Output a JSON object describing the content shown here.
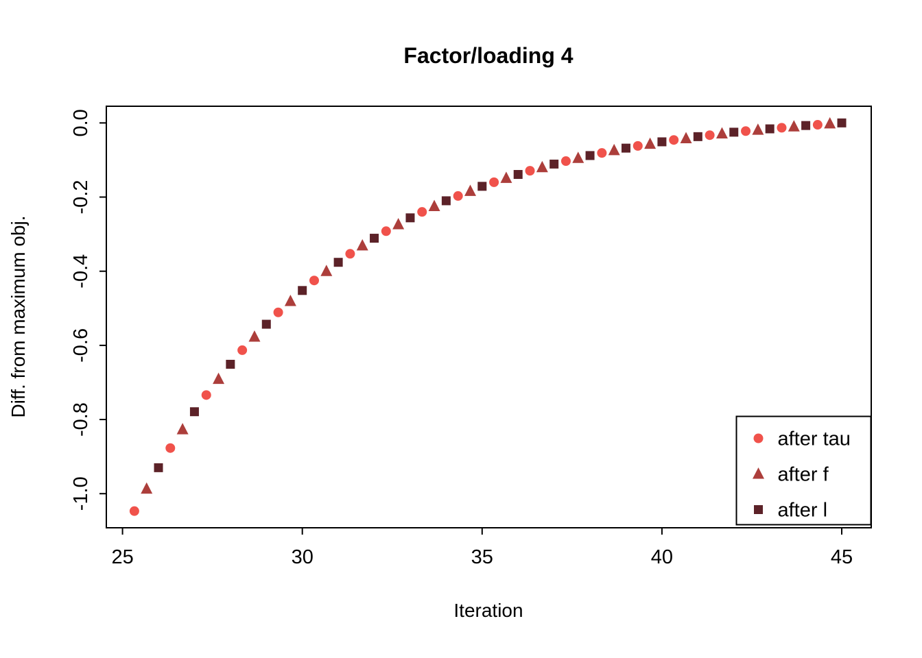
{
  "chart_data": {
    "type": "scatter",
    "title": "Factor/loading 4",
    "xlabel": "Iteration",
    "ylabel": "Diff. from maximum obj.",
    "xlim": [
      24.55,
      45.82
    ],
    "ylim": [
      -1.092,
      0.045
    ],
    "grid": false,
    "x_ticks": {
      "values": [
        25,
        30,
        35,
        40,
        45
      ],
      "labels": [
        "25",
        "30",
        "35",
        "40",
        "45"
      ]
    },
    "y_ticks": {
      "values": [
        0,
        -0.2,
        -0.4,
        -0.6,
        -0.8,
        -1.0
      ],
      "labels": [
        "0.0",
        "-0.2",
        "-0.4",
        "-0.6",
        "-0.8",
        "-1.0"
      ]
    },
    "legend": {
      "position": "bottomright"
    },
    "series": [
      {
        "name": "after tau",
        "marker": "circle",
        "color": "#F0524B",
        "x": [
          25.33,
          26.33,
          27.33,
          28.33,
          29.33,
          30.33,
          31.33,
          32.33,
          33.33,
          34.33,
          35.33,
          36.33,
          37.33,
          38.33,
          39.33,
          40.33,
          41.33,
          42.33,
          43.33,
          44.33
        ],
        "y": [
          -1.047,
          -0.877,
          -0.734,
          -0.613,
          -0.511,
          -0.425,
          -0.353,
          -0.292,
          -0.24,
          -0.197,
          -0.16,
          -0.129,
          -0.103,
          -0.081,
          -0.062,
          -0.046,
          -0.033,
          -0.022,
          -0.013,
          -0.005
        ]
      },
      {
        "name": "after f",
        "marker": "triangle",
        "color": "#AC3E3B",
        "x": [
          25.67,
          26.67,
          27.67,
          28.67,
          29.67,
          30.67,
          31.67,
          32.67,
          33.67,
          34.67,
          35.67,
          36.67,
          37.67,
          38.67,
          39.67,
          40.67,
          41.67,
          42.67,
          43.67,
          44.67
        ],
        "y": [
          -0.987,
          -0.827,
          -0.691,
          -0.577,
          -0.481,
          -0.4,
          -0.331,
          -0.274,
          -0.225,
          -0.184,
          -0.149,
          -0.12,
          -0.095,
          -0.074,
          -0.057,
          -0.042,
          -0.029,
          -0.019,
          -0.01,
          -0.002
        ]
      },
      {
        "name": "after l",
        "marker": "square",
        "color": "#5C2228",
        "x": [
          26,
          27,
          28,
          29,
          30,
          31,
          32,
          33,
          34,
          35,
          36,
          37,
          38,
          39,
          40,
          41,
          42,
          43,
          44,
          45
        ],
        "y": [
          -0.93,
          -0.779,
          -0.651,
          -0.543,
          -0.452,
          -0.376,
          -0.311,
          -0.256,
          -0.21,
          -0.171,
          -0.139,
          -0.111,
          -0.088,
          -0.068,
          -0.051,
          -0.037,
          -0.025,
          -0.016,
          -0.007,
          0.0
        ]
      }
    ]
  }
}
